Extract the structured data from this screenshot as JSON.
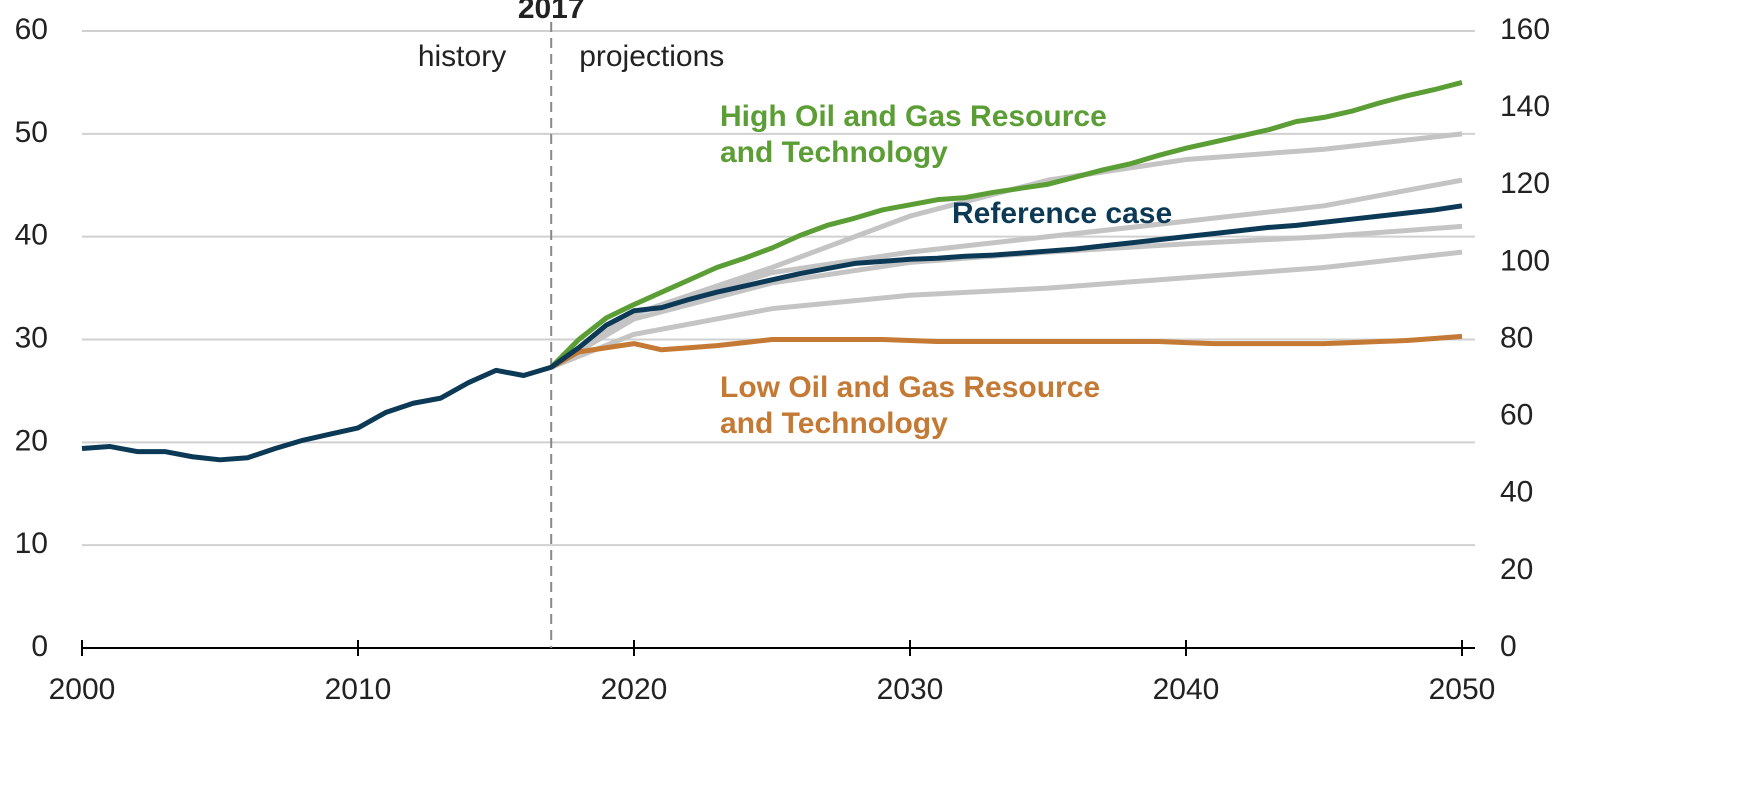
{
  "chart_data": {
    "type": "line",
    "divider": 2017,
    "annotations": {
      "left": "history",
      "right": "projections"
    },
    "x": [
      2000,
      2001,
      2002,
      2003,
      2004,
      2005,
      2006,
      2007,
      2008,
      2009,
      2010,
      2011,
      2012,
      2013,
      2014,
      2015,
      2016,
      2017,
      2018,
      2019,
      2020,
      2021,
      2022,
      2023,
      2024,
      2025,
      2026,
      2027,
      2028,
      2029,
      2030,
      2031,
      2032,
      2033,
      2034,
      2035,
      2036,
      2037,
      2038,
      2039,
      2040,
      2041,
      2042,
      2043,
      2044,
      2045,
      2046,
      2047,
      2048,
      2049,
      2050
    ],
    "xlim": [
      2000,
      2050
    ],
    "xticks": [
      2000,
      2010,
      2020,
      2030,
      2040,
      2050
    ],
    "ylim": [
      0,
      60
    ],
    "yticks": [
      0,
      10,
      20,
      30,
      40,
      50,
      60
    ],
    "y2lim": [
      0,
      160
    ],
    "y2ticks": [
      0,
      20,
      40,
      60,
      80,
      100,
      120,
      140,
      160
    ],
    "grid": true,
    "series": [
      {
        "x": [
          2017,
          2020,
          2025,
          2030,
          2035,
          2040,
          2045,
          2050
        ],
        "color": "#c4c4c4",
        "values": [
          27.3,
          32.5,
          37,
          42,
          45.5,
          47.5,
          48.5,
          50
        ]
      },
      {
        "x": [
          2017,
          2020,
          2025,
          2030,
          2035,
          2040,
          2045,
          2050
        ],
        "color": "#c4c4c4",
        "values": [
          27.3,
          32.5,
          36.5,
          38.5,
          40,
          41.5,
          43,
          45.5
        ]
      },
      {
        "x": [
          2017,
          2020,
          2025,
          2030,
          2035,
          2040,
          2045,
          2050
        ],
        "color": "#c4c4c4",
        "values": [
          27.3,
          32,
          35.5,
          37.5,
          38.5,
          39.3,
          40,
          41
        ]
      },
      {
        "x": [
          2017,
          2020,
          2025,
          2030,
          2035,
          2040,
          2045,
          2050
        ],
        "color": "#c4c4c4",
        "values": [
          27.3,
          30.5,
          33,
          34.3,
          35,
          36,
          37,
          38.5
        ]
      },
      {
        "name": "Low Oil and Gas Resource and Technology",
        "color": "#c47a34",
        "x": [
          2017,
          2018,
          2019,
          2020,
          2021,
          2022,
          2023,
          2024,
          2025,
          2026,
          2027,
          2028,
          2029,
          2030,
          2031,
          2032,
          2033,
          2034,
          2035,
          2036,
          2037,
          2038,
          2039,
          2040,
          2041,
          2042,
          2043,
          2044,
          2045,
          2046,
          2047,
          2048,
          2049,
          2050
        ],
        "values": [
          27.3,
          28.8,
          29.2,
          29.6,
          29.0,
          29.2,
          29.4,
          29.7,
          30,
          30,
          30,
          30,
          30,
          29.9,
          29.8,
          29.8,
          29.8,
          29.8,
          29.8,
          29.8,
          29.8,
          29.8,
          29.8,
          29.7,
          29.6,
          29.6,
          29.6,
          29.6,
          29.6,
          29.7,
          29.8,
          29.9,
          30.1,
          30.3
        ]
      },
      {
        "name": "High Oil and Gas Resource and Technology",
        "color": "#5c9e36",
        "x": [
          2017,
          2018,
          2019,
          2020,
          2021,
          2022,
          2023,
          2024,
          2025,
          2026,
          2027,
          2028,
          2029,
          2030,
          2031,
          2032,
          2033,
          2034,
          2035,
          2036,
          2037,
          2038,
          2039,
          2040,
          2041,
          2042,
          2043,
          2044,
          2045,
          2046,
          2047,
          2048,
          2049,
          2050
        ],
        "values": [
          27.3,
          30,
          32.1,
          33.4,
          34.6,
          35.8,
          37,
          37.9,
          38.9,
          40.1,
          41.1,
          41.8,
          42.6,
          43.1,
          43.6,
          43.8,
          44.3,
          44.7,
          45.1,
          45.8,
          46.5,
          47.1,
          47.9,
          48.6,
          49.2,
          49.8,
          50.4,
          51.2,
          51.6,
          52.2,
          53,
          53.7,
          54.3,
          55
        ]
      },
      {
        "name": "Reference case",
        "color": "#0c3a56",
        "values": [
          19.4,
          19.6,
          19.1,
          19.1,
          18.6,
          18.3,
          18.5,
          19.4,
          20.2,
          20.8,
          21.4,
          22.9,
          23.8,
          24.3,
          25.8,
          27.0,
          26.5,
          27.3,
          29.2,
          31.4,
          32.8,
          33.1,
          33.9,
          34.6,
          35.2,
          35.8,
          36.4,
          36.9,
          37.4,
          37.6,
          37.8,
          37.9,
          38.1,
          38.2,
          38.4,
          38.6,
          38.8,
          39.1,
          39.4,
          39.7,
          40.0,
          40.3,
          40.6,
          40.9,
          41.1,
          41.4,
          41.7,
          42.0,
          42.3,
          42.6,
          43.0
        ]
      }
    ]
  }
}
